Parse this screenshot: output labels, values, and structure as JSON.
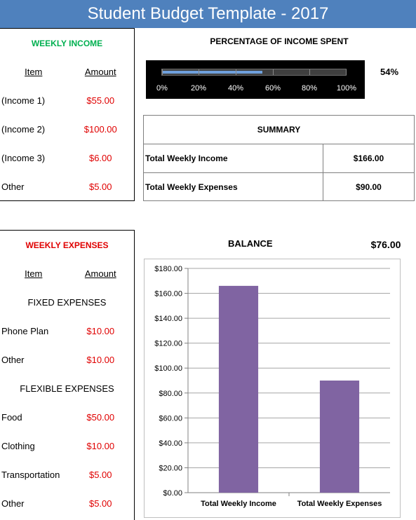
{
  "title": "Student Budget Template - 2017",
  "income": {
    "header": "WEEKLY INCOME",
    "col_item": "Item",
    "col_amount": "Amount",
    "rows": [
      {
        "item": "(Income 1)",
        "amount": "$55.00"
      },
      {
        "item": "(Income 2)",
        "amount": "$100.00"
      },
      {
        "item": "(Income 3)",
        "amount": "$6.00"
      },
      {
        "item": "Other",
        "amount": "$5.00"
      }
    ]
  },
  "percentage": {
    "title": "PERCENTAGE OF INCOME SPENT",
    "value": "54%",
    "fill_fraction": 0.54,
    "ticks": [
      "0%",
      "20%",
      "40%",
      "60%",
      "80%",
      "100%"
    ]
  },
  "summary": {
    "header": "SUMMARY",
    "rows": [
      {
        "label": "Total Weekly Income",
        "value": "$166.00"
      },
      {
        "label": "Total Weekly Expenses",
        "value": "$90.00"
      }
    ]
  },
  "expenses": {
    "header": "WEEKLY EXPENSES",
    "col_item": "Item",
    "col_amount": "Amount",
    "fixed_header": "FIXED EXPENSES",
    "fixed": [
      {
        "item": "Phone Plan",
        "amount": "$10.00"
      },
      {
        "item": "Other",
        "amount": "$10.00"
      }
    ],
    "flexible_header": "FLEXIBLE EXPENSES",
    "flexible": [
      {
        "item": "Food",
        "amount": "$50.00"
      },
      {
        "item": "Clothing",
        "amount": "$10.00"
      },
      {
        "item": "Transportation",
        "amount": "$5.00"
      },
      {
        "item": "Other",
        "amount": "$5.00"
      }
    ]
  },
  "balance": {
    "title": "BALANCE",
    "value": "$76.00"
  },
  "colors": {
    "title_bar": "#4f81bd",
    "income_header": "#00b050",
    "expense_header": "#e00000",
    "amount_text": "#e00000",
    "bar": "#8064a2",
    "gauge_fill": "#6fa0dc"
  },
  "chart_data": {
    "type": "bar",
    "categories": [
      "Total Weekly Income",
      "Total Weekly Expenses"
    ],
    "values": [
      166,
      90
    ],
    "ylim": [
      0,
      180
    ],
    "yticks": [
      "$0.00",
      "$20.00",
      "$40.00",
      "$60.00",
      "$80.00",
      "$100.00",
      "$120.00",
      "$140.00",
      "$160.00",
      "$180.00"
    ],
    "grid": true
  }
}
